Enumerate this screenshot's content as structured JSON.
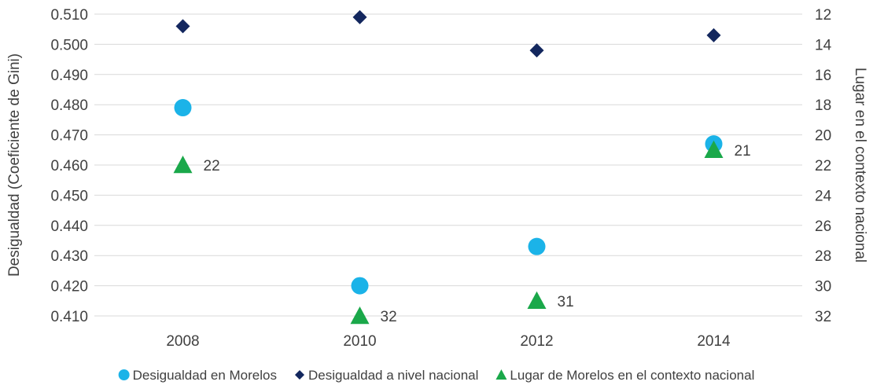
{
  "chart_data": {
    "type": "scatter",
    "categories": [
      "2008",
      "2010",
      "2012",
      "2014"
    ],
    "ylabel": "Desigualdad (Coeficiente de Gini)",
    "ylabel_right": "Lugar en el contexto nacional",
    "ylim": [
      0.41,
      0.51
    ],
    "ylim_right": [
      12,
      32
    ],
    "y_right_inverted": true,
    "yticks": [
      "0.510",
      "0.500",
      "0.490",
      "0.480",
      "0.470",
      "0.460",
      "0.450",
      "0.440",
      "0.430",
      "0.420",
      "0.410"
    ],
    "yticks_right": [
      "12",
      "14",
      "16",
      "18",
      "20",
      "22",
      "24",
      "26",
      "28",
      "30",
      "32"
    ],
    "grid": true,
    "legend_position": "bottom",
    "series": [
      {
        "name": "Desigualdad en Morelos",
        "values": [
          0.479,
          0.42,
          0.433,
          0.467
        ],
        "axis": "left",
        "marker": "circle",
        "color": "#1BB3E8"
      },
      {
        "name": "Desigualdad a nivel nacional",
        "values": [
          0.506,
          0.509,
          0.498,
          0.503
        ],
        "axis": "left",
        "marker": "diamond",
        "color": "#13275E"
      },
      {
        "name": "Lugar de Morelos en el contexto nacional",
        "values": [
          22,
          32,
          31,
          21
        ],
        "axis": "right",
        "marker": "triangle",
        "color": "#1AA84A",
        "data_labels": [
          "22",
          "32",
          "31",
          "21"
        ]
      }
    ]
  }
}
